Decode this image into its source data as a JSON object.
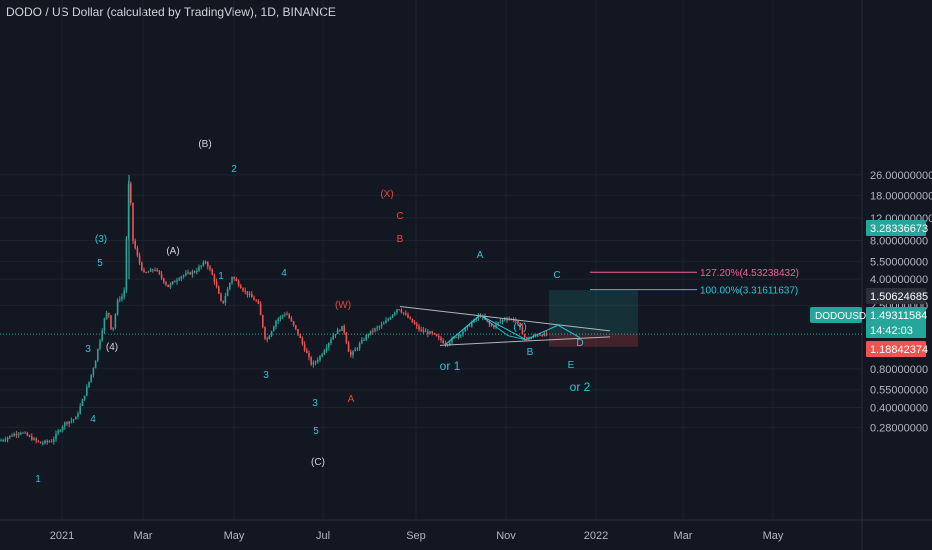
{
  "header": {
    "title": "DODO / US Dollar (calculated by TradingView), 1D, BINANCE"
  },
  "colors": {
    "background": "#131722",
    "up": "#26a69a",
    "down": "#ef5350",
    "teal": "#26c6da",
    "pink": "#f06292",
    "red": "#f44336",
    "white": "#d1d4dc"
  },
  "chart_data": {
    "type": "candlestick",
    "title": "DODO / US Dollar (calculated by TradingView), 1D, BINANCE",
    "scale": "log",
    "x_ticks": [
      "2021",
      "Mar",
      "May",
      "Jul",
      "Sep",
      "Nov",
      "2022",
      "Mar",
      "May"
    ],
    "y_ticks": [
      "26.00000000",
      "18.00000000",
      "12.00000000",
      "8.00000000",
      "5.50000000",
      "4.00000000",
      "2.50000000",
      "0.80000000",
      "0.55000000",
      "0.40000000",
      "0.28000000"
    ],
    "y_tick_values": [
      26,
      18,
      12,
      8,
      5.5,
      4,
      2.5,
      0.8,
      0.55,
      0.4,
      0.28
    ],
    "price_tags": [
      {
        "label": "3.28336673",
        "value": 3.28336673,
        "color": "#26a69a"
      },
      {
        "label": "1.50624685",
        "value": 1.50624685,
        "color": "#2a2e39"
      },
      {
        "label": "1.49311584",
        "value": 1.49311584,
        "color": "#26a69a"
      },
      {
        "label": "14:42:03",
        "value": 1.37,
        "color": "#26a69a"
      },
      {
        "label": "1.18842374",
        "value": 1.18842374,
        "color": "#ef5350"
      }
    ],
    "symbol_tag": "DODOUSD",
    "fib_levels": [
      {
        "label": "127.20%(4.53238432)",
        "value": 4.53238432,
        "color": "#f06292"
      },
      {
        "label": "100.00%(3.31611637)",
        "value": 3.31611637,
        "color": "#26c6da"
      }
    ],
    "current_price": 1.49311584,
    "long_position": {
      "target": 3.28336673,
      "entry": 1.50624685,
      "stop": 1.18842374
    },
    "wave_labels": [
      {
        "text": "1",
        "color": "teal"
      },
      {
        "text": "4",
        "color": "teal"
      },
      {
        "text": "3",
        "color": "teal"
      },
      {
        "text": "5",
        "color": "teal"
      },
      {
        "text": "(3)",
        "color": "teal"
      },
      {
        "text": "(4)",
        "color": "white"
      },
      {
        "text": "(A)",
        "color": "white"
      },
      {
        "text": "(B)",
        "color": "white"
      },
      {
        "text": "2",
        "color": "teal"
      },
      {
        "text": "1",
        "color": "teal"
      },
      {
        "text": "3",
        "color": "teal"
      },
      {
        "text": "4",
        "color": "teal"
      },
      {
        "text": "3",
        "color": "teal"
      },
      {
        "text": "5",
        "color": "teal"
      },
      {
        "text": "(C)",
        "color": "white"
      },
      {
        "text": "(W)",
        "color": "red"
      },
      {
        "text": "A",
        "color": "red"
      },
      {
        "text": "B",
        "color": "red"
      },
      {
        "text": "C",
        "color": "red"
      },
      {
        "text": "(X)",
        "color": "red"
      },
      {
        "text": "or 1",
        "color": "teal"
      },
      {
        "text": "A",
        "color": "teal"
      },
      {
        "text": "B",
        "color": "teal"
      },
      {
        "text": "C",
        "color": "teal"
      },
      {
        "text": "D",
        "color": "teal"
      },
      {
        "text": "E",
        "color": "teal"
      },
      {
        "text": "or 2",
        "color": "teal"
      },
      {
        "text": "(Y)",
        "color": "red"
      }
    ]
  }
}
